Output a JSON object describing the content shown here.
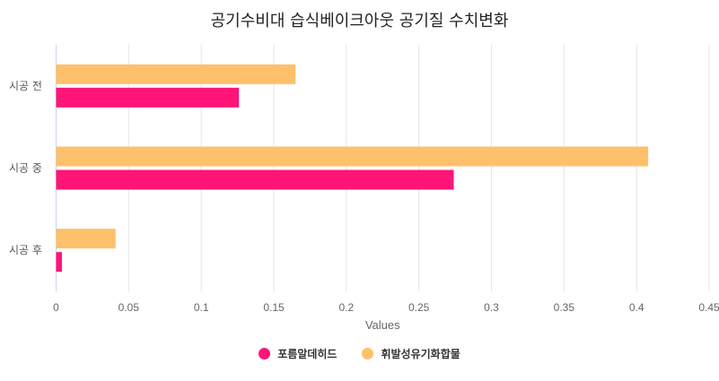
{
  "chart_data": {
    "type": "bar",
    "orientation": "horizontal",
    "title": "공기수비대 습식베이크아웃 공기질 수치변화",
    "xlabel": "Values",
    "ylabel": "",
    "categories": [
      "시공 전",
      "시공 중",
      "시공 후"
    ],
    "series": [
      {
        "name": "포름알데히드",
        "values": [
          0.126,
          0.274,
          0.004
        ],
        "color": "#ff1478"
      },
      {
        "name": "휘발성유기화합물",
        "values": [
          0.165,
          0.408,
          0.041
        ],
        "color": "#ffc06b"
      }
    ],
    "xlim": [
      0,
      0.45
    ],
    "xticks": [
      "0",
      "0.05",
      "0.1",
      "0.15",
      "0.2",
      "0.25",
      "0.3",
      "0.35",
      "0.4",
      "0.45"
    ],
    "grid": true,
    "legend": "bottom"
  }
}
